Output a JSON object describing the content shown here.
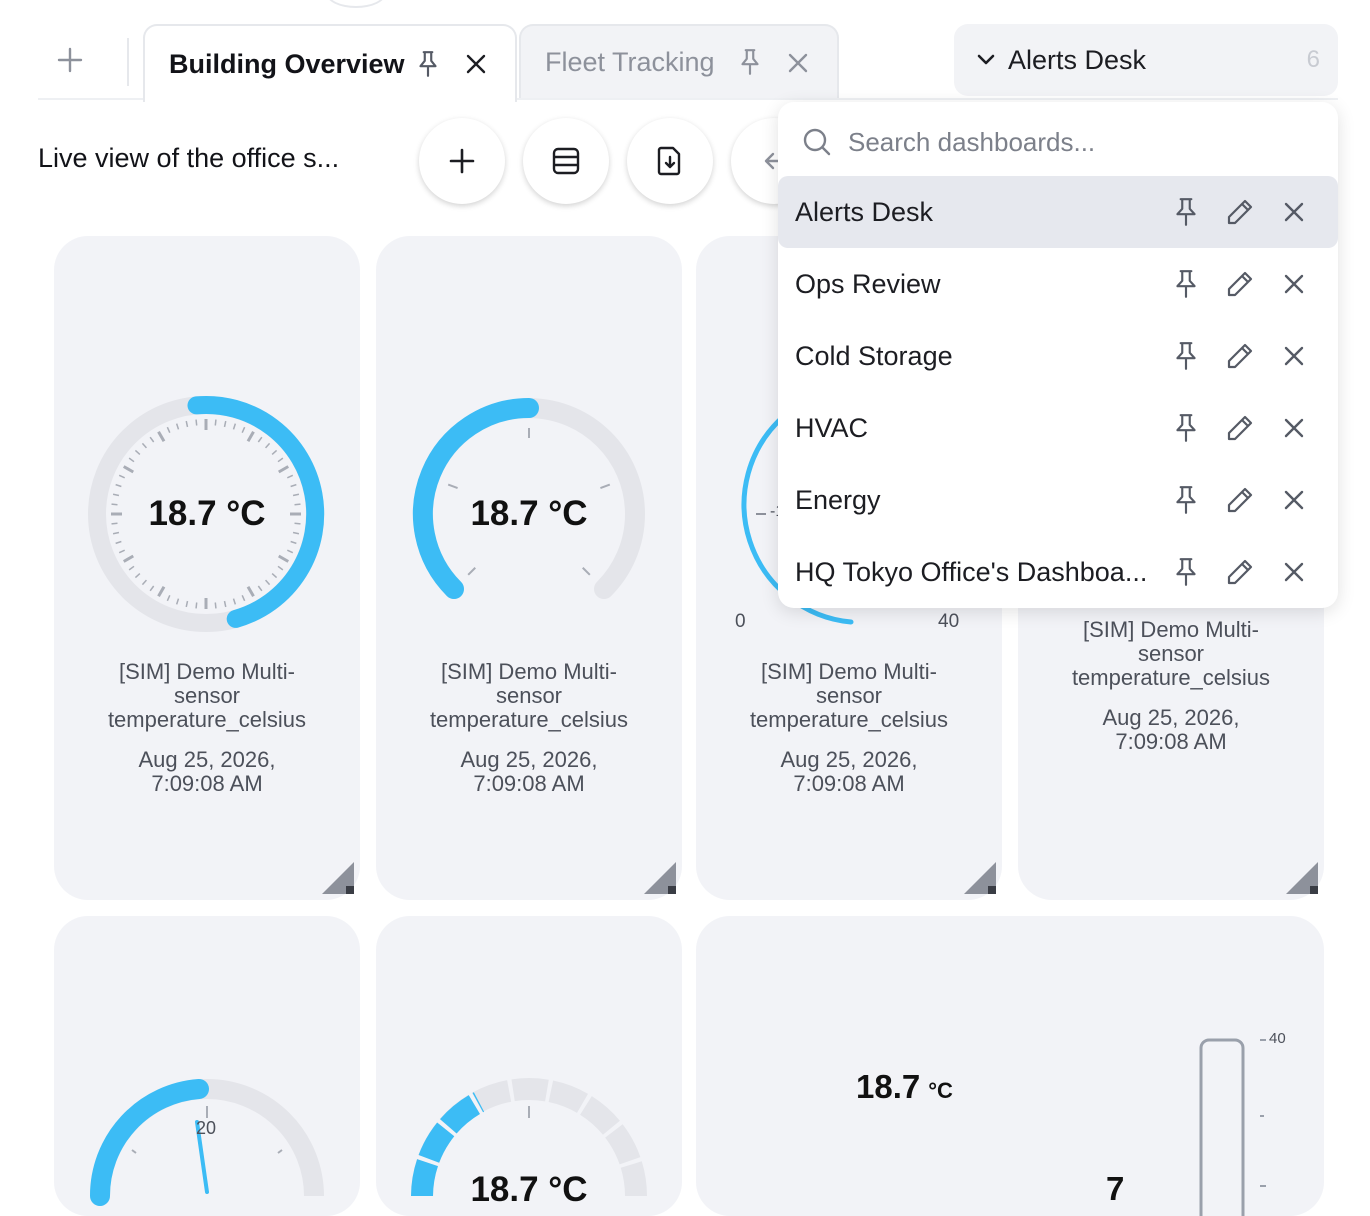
{
  "tabs": {
    "new_tab_icon": "plus-icon",
    "items": [
      {
        "label": "Building Overview",
        "active": true
      },
      {
        "label": "Fleet Tracking",
        "active": false
      }
    ]
  },
  "dashboards_menu": {
    "current": "Alerts Desk",
    "count": "6",
    "search_placeholder": "Search dashboards...",
    "items": [
      {
        "label": "Alerts Desk"
      },
      {
        "label": "Ops Review"
      },
      {
        "label": "Cold Storage"
      },
      {
        "label": "HVAC"
      },
      {
        "label": "Energy"
      },
      {
        "label": "HQ Tokyo Office's Dashboa..."
      }
    ]
  },
  "toolbar": {
    "subtitle": "Live view of the office s...",
    "buttons": [
      "add-widget-button",
      "layout-button",
      "import-button"
    ]
  },
  "widgets": {
    "value": "18.7 °C",
    "value_number": "18.7",
    "unit": "°C",
    "name_line1": "[SIM] Demo Multi-",
    "name_line2": "sensor",
    "name_line3": "temperature_celsius",
    "date_line1": "Aug 25, 2026,",
    "date_line2": "7:09:08 AM",
    "scale_min": "0",
    "scale_max": "40",
    "scale_mid": "20",
    "scale_partial": "-1",
    "thermo_max": "40",
    "partial_digit": "7",
    "partial_value": "18.7 °C",
    "gauge_fraction": 0.47,
    "accent": "#3cbcf5"
  }
}
